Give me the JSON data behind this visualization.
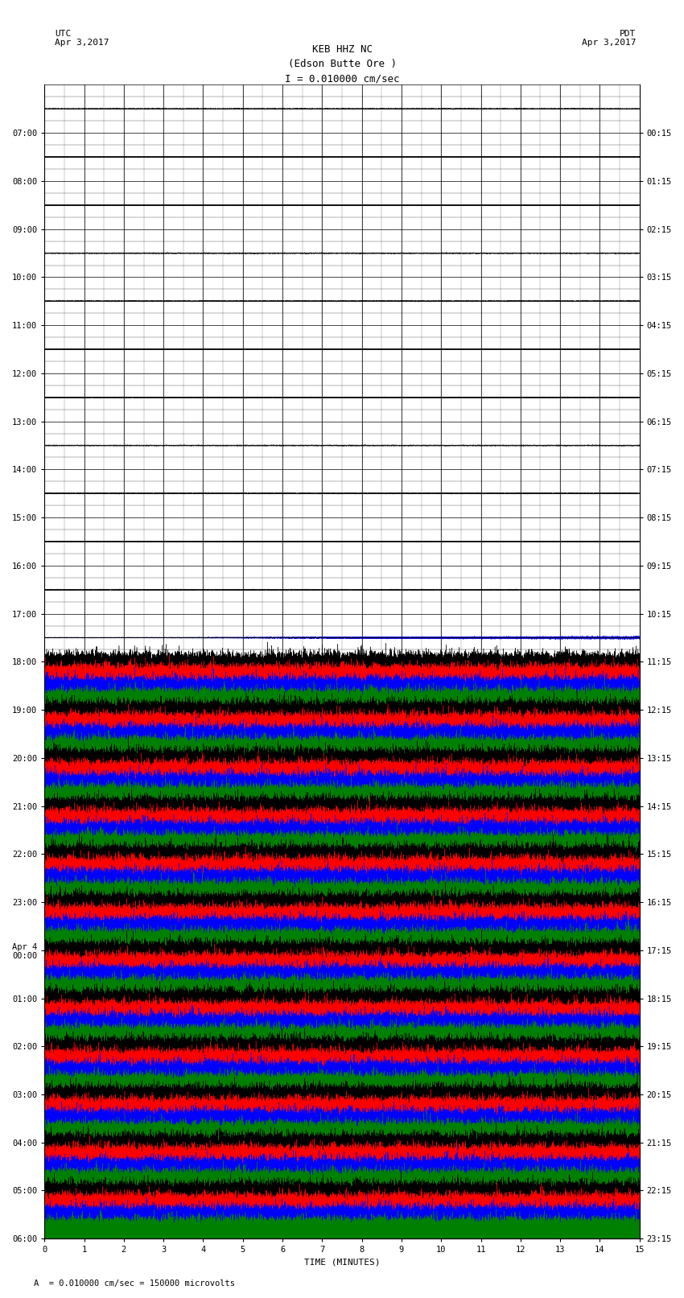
{
  "title_line1": "KEB HHZ NC",
  "title_line2": "(Edson Butte Ore )",
  "title_line3": "I = 0.010000 cm/sec",
  "left_header_line1": "UTC",
  "left_header_line2": "Apr 3,2017",
  "right_header_line1": "PDT",
  "right_header_line2": "Apr 3,2017",
  "xlabel": "TIME (MINUTES)",
  "footnote": "A  = 0.010000 cm/sec = 150000 microvolts",
  "utc_labels": [
    "07:00",
    "08:00",
    "09:00",
    "10:00",
    "11:00",
    "12:00",
    "13:00",
    "14:00",
    "15:00",
    "16:00",
    "17:00",
    "18:00",
    "19:00",
    "20:00",
    "21:00",
    "22:00",
    "23:00",
    "Apr 4\n00:00",
    "01:00",
    "02:00",
    "03:00",
    "04:00",
    "05:00",
    "06:00"
  ],
  "pdt_labels": [
    "00:15",
    "01:15",
    "02:15",
    "03:15",
    "04:15",
    "05:15",
    "06:15",
    "07:15",
    "08:15",
    "09:15",
    "10:15",
    "11:15",
    "12:15",
    "13:15",
    "14:15",
    "15:15",
    "16:15",
    "17:15",
    "18:15",
    "19:15",
    "20:15",
    "21:15",
    "22:15",
    "23:15"
  ],
  "n_rows": 24,
  "n_minutes": 15,
  "colors_cycle": [
    "blue",
    "green",
    "black",
    "red",
    "blue",
    "green"
  ],
  "sub_traces_per_row": 4,
  "sub_colors": [
    "black",
    "red",
    "blue",
    "green"
  ],
  "quiet_rows": 12,
  "background": "white",
  "grid_color": "#000000",
  "amplitude_quiet": 0.03,
  "amplitude_active": 0.42,
  "sample_rate": 200,
  "title_fontsize": 9,
  "label_fontsize": 8,
  "tick_fontsize": 7.5,
  "n_sub_rows": 4
}
